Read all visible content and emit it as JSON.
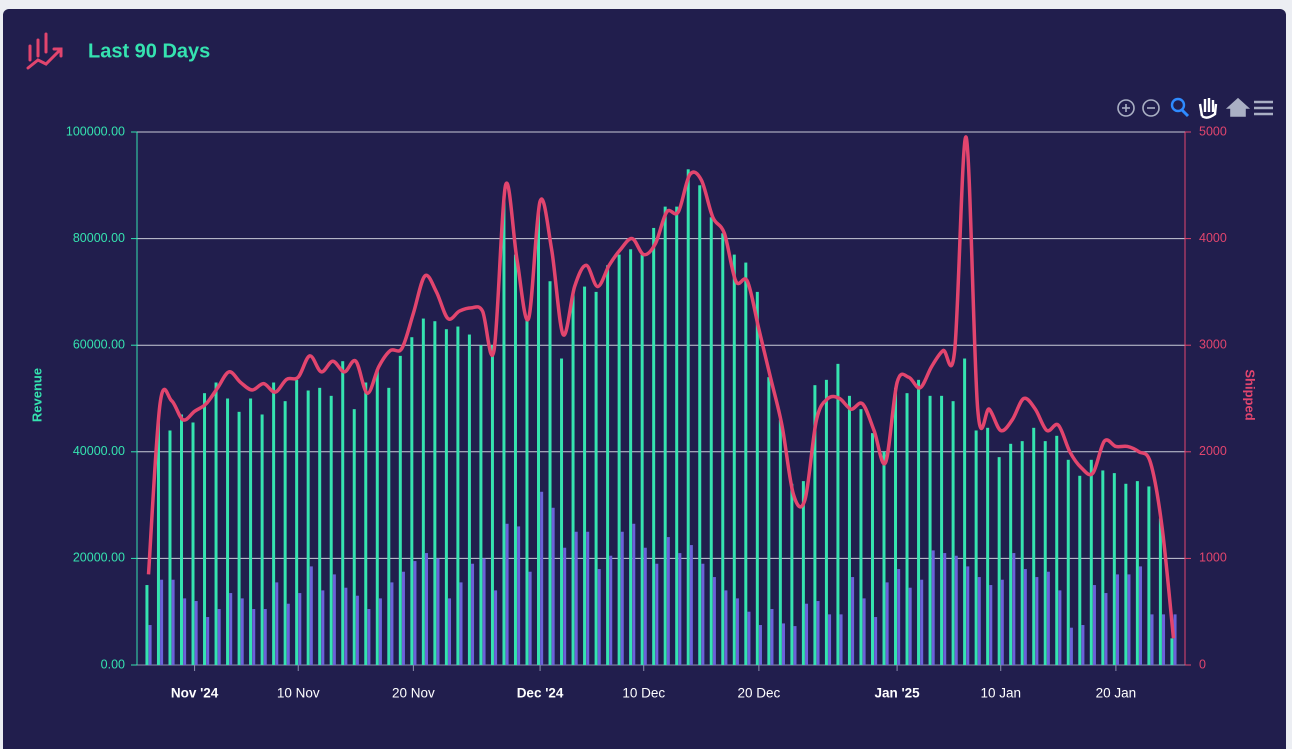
{
  "title": "Last 90 Days",
  "chart_data": {
    "type": "bar-line",
    "x": [
      "2024-10-28",
      "2024-10-29",
      "2024-10-30",
      "2024-10-31",
      "2024-11-01",
      "2024-11-02",
      "2024-11-03",
      "2024-11-04",
      "2024-11-05",
      "2024-11-06",
      "2024-11-07",
      "2024-11-08",
      "2024-11-09",
      "2024-11-10",
      "2024-11-11",
      "2024-11-12",
      "2024-11-13",
      "2024-11-14",
      "2024-11-15",
      "2024-11-16",
      "2024-11-17",
      "2024-11-18",
      "2024-11-19",
      "2024-11-20",
      "2024-11-21",
      "2024-11-22",
      "2024-11-23",
      "2024-11-24",
      "2024-11-25",
      "2024-11-26",
      "2024-11-27",
      "2024-11-28",
      "2024-11-29",
      "2024-11-30",
      "2024-12-01",
      "2024-12-02",
      "2024-12-03",
      "2024-12-04",
      "2024-12-05",
      "2024-12-06",
      "2024-12-07",
      "2024-12-08",
      "2024-12-09",
      "2024-12-10",
      "2024-12-11",
      "2024-12-12",
      "2024-12-13",
      "2024-12-14",
      "2024-12-15",
      "2024-12-16",
      "2024-12-17",
      "2024-12-18",
      "2024-12-19",
      "2024-12-20",
      "2024-12-21",
      "2024-12-22",
      "2024-12-23",
      "2024-12-24",
      "2024-12-25",
      "2024-12-26",
      "2024-12-27",
      "2024-12-28",
      "2024-12-29",
      "2024-12-30",
      "2024-12-31",
      "2025-01-01",
      "2025-01-02",
      "2025-01-03",
      "2025-01-04",
      "2025-01-05",
      "2025-01-06",
      "2025-01-07",
      "2025-01-08",
      "2025-01-09",
      "2025-01-10",
      "2025-01-11",
      "2025-01-12",
      "2025-01-13",
      "2025-01-14",
      "2025-01-15",
      "2025-01-16",
      "2025-01-17",
      "2025-01-18",
      "2025-01-19",
      "2025-01-20",
      "2025-01-21",
      "2025-01-22",
      "2025-01-23",
      "2025-01-24",
      "2025-01-25"
    ],
    "series": [
      {
        "type": "bar",
        "color": "#35e3b0",
        "values": [
          15000,
          46000,
          44000,
          47000,
          45500,
          51000,
          53000,
          50000,
          47500,
          50000,
          47000,
          53000,
          49500,
          53500,
          51500,
          52000,
          50500,
          57000,
          48000,
          53000,
          55500,
          52000,
          58000,
          61500,
          65000,
          64500,
          63000,
          63500,
          62000,
          60000,
          60000,
          88000,
          77000,
          65000,
          85000,
          72000,
          57500,
          70000,
          71000,
          70000,
          75000,
          77000,
          78000,
          77000,
          82000,
          86000,
          86000,
          93000,
          90000,
          84000,
          81000,
          77000,
          75500,
          70000,
          54000,
          46000,
          34000,
          34500,
          52500,
          53500,
          56500,
          50500,
          48000,
          43500,
          40000,
          52000,
          51000,
          53500,
          50500,
          50500,
          49500,
          57500,
          44000,
          44500,
          39000,
          41500,
          42000,
          44500,
          42000,
          43000,
          38500,
          35500,
          38500,
          36500,
          36000,
          34000,
          34500,
          33500,
          27500,
          5000
        ]
      },
      {
        "type": "bar",
        "color": "#6b62d9",
        "values": [
          7500,
          16000,
          16000,
          12500,
          12000,
          9000,
          10500,
          13500,
          12500,
          10500,
          10500,
          15500,
          11500,
          13500,
          18500,
          14000,
          17000,
          14500,
          13000,
          10500,
          12500,
          15500,
          17500,
          19500,
          21000,
          20000,
          12500,
          15500,
          19000,
          20000,
          14000,
          26500,
          26000,
          17500,
          32500,
          29500,
          22000,
          25000,
          25000,
          18000,
          20500,
          25000,
          26500,
          22000,
          19000,
          24000,
          21000,
          22500,
          19000,
          16500,
          14000,
          12500,
          10000,
          7500,
          10500,
          7800,
          7300,
          11500,
          12000,
          9500,
          9500,
          16500,
          12500,
          9000,
          15500,
          18000,
          14500,
          16000,
          21500,
          21000,
          20500,
          18500,
          16500,
          15000,
          16000,
          21000,
          18000,
          16500,
          17500,
          14000,
          7000,
          7500,
          15000,
          13500,
          17000,
          17000,
          18500,
          9500,
          9500,
          9500
        ]
      },
      {
        "type": "line",
        "axis": "y2",
        "color": "#e2456e",
        "values": [
          850,
          2450,
          2480,
          2300,
          2380,
          2450,
          2600,
          2750,
          2650,
          2580,
          2640,
          2560,
          2680,
          2700,
          2900,
          2750,
          2850,
          2750,
          2850,
          2550,
          2800,
          2950,
          2970,
          3300,
          3650,
          3500,
          3250,
          3320,
          3350,
          3320,
          2950,
          4500,
          3800,
          3250,
          4350,
          3900,
          3100,
          3550,
          3750,
          3550,
          3750,
          3900,
          4000,
          3850,
          3950,
          4250,
          4250,
          4600,
          4550,
          4200,
          4050,
          3600,
          3600,
          3150,
          2700,
          2250,
          1600,
          1550,
          2300,
          2500,
          2500,
          2400,
          2450,
          2200,
          1900,
          2650,
          2700,
          2600,
          2800,
          2950,
          2950,
          4950,
          2400,
          2400,
          2200,
          2300,
          2500,
          2400,
          2200,
          2250,
          2000,
          1850,
          1800,
          2100,
          2050,
          2050,
          2000,
          1900,
          1300,
          250
        ]
      }
    ],
    "xlim": [
      "2024-10-27",
      "2025-01-26"
    ],
    "xticks": [
      {
        "value": "2024-11-01",
        "label": "Nov '24"
      },
      {
        "value": "2024-11-10",
        "label": "10 Nov"
      },
      {
        "value": "2024-11-20",
        "label": "20 Nov"
      },
      {
        "value": "2024-12-01",
        "label": "Dec '24"
      },
      {
        "value": "2024-12-10",
        "label": "10 Dec"
      },
      {
        "value": "2024-12-20",
        "label": "20 Dec"
      },
      {
        "value": "2025-01-01",
        "label": "Jan '25"
      },
      {
        "value": "2025-01-10",
        "label": "10 Jan"
      },
      {
        "value": "2025-01-20",
        "label": "20 Jan"
      }
    ],
    "ylabel": "Revenue",
    "ylim": [
      0,
      100000
    ],
    "yticks": [
      {
        "value": 0,
        "label": "0.00"
      },
      {
        "value": 20000,
        "label": "20000.00"
      },
      {
        "value": 40000,
        "label": "40000.00"
      },
      {
        "value": 60000,
        "label": "60000.00"
      },
      {
        "value": 80000,
        "label": "80000.00"
      },
      {
        "value": 100000,
        "label": "100000.00"
      }
    ],
    "y2label": "Shipped",
    "y2lim": [
      0,
      5000
    ],
    "y2ticks": [
      0,
      1000,
      2000,
      3000,
      4000,
      5000
    ],
    "grid": true
  }
}
